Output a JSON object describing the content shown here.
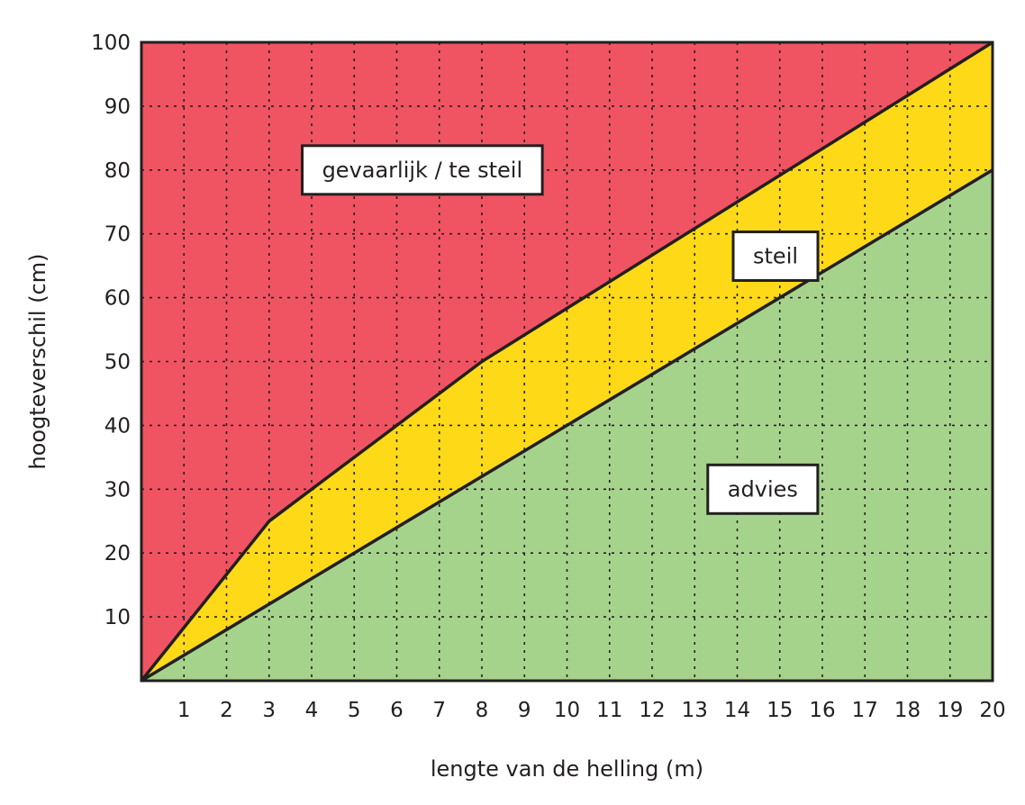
{
  "chart_data": {
    "type": "area",
    "xlabel": "lengte van de helling (m)",
    "ylabel": "hoogteverschil (cm)",
    "xlim": [
      0,
      20
    ],
    "ylim": [
      0,
      100
    ],
    "x_ticks": [
      1,
      2,
      3,
      4,
      5,
      6,
      7,
      8,
      9,
      10,
      11,
      12,
      13,
      14,
      15,
      16,
      17,
      18,
      19,
      20
    ],
    "y_ticks": [
      10,
      20,
      30,
      40,
      50,
      60,
      70,
      80,
      90,
      100
    ],
    "grid": true,
    "boundaries": [
      {
        "x": [
          0,
          3,
          8,
          20
        ],
        "y": [
          0,
          25,
          50,
          100
        ]
      },
      {
        "x": [
          0,
          20
        ],
        "y": [
          0,
          80
        ]
      }
    ],
    "zones": [
      {
        "label": "gevaarlijk / te steil",
        "color": "#f05462",
        "label_x": 6.6,
        "label_y": 80
      },
      {
        "label": "steil",
        "color": "#fed918",
        "label_x": 14.9,
        "label_y": 66.5
      },
      {
        "label": "advies",
        "color": "#a6d38b",
        "label_x": 14.6,
        "label_y": 30
      }
    ],
    "colors": {
      "line": "#231f20",
      "grid": "#231f20",
      "label_box": "#ffffff"
    }
  }
}
